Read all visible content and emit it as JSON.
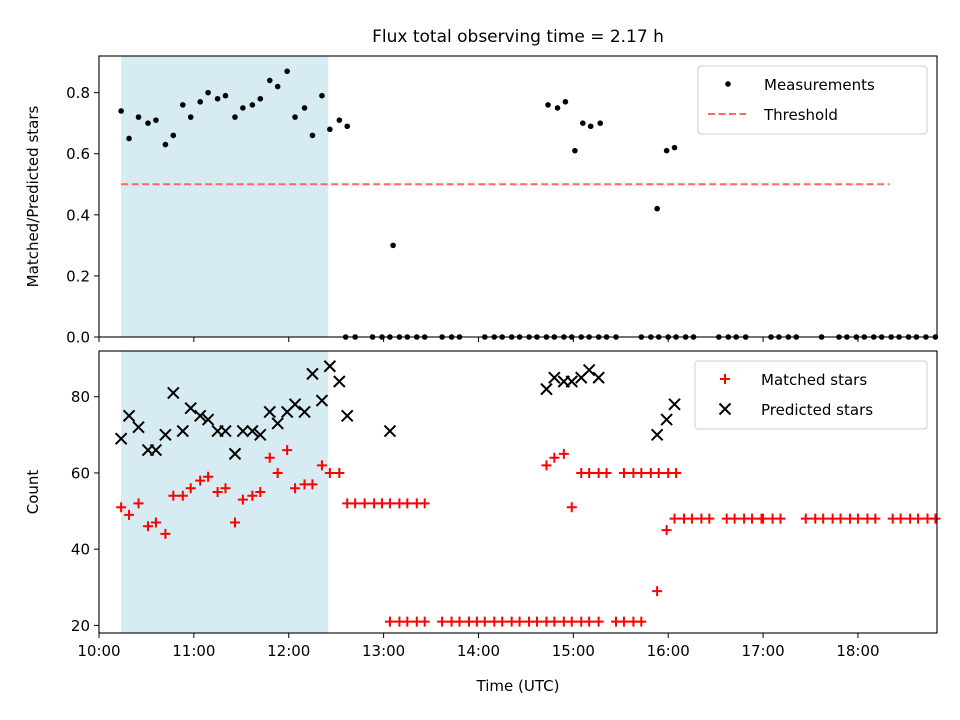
{
  "figure": {
    "title": "Flux total observing time = 2.17 h"
  },
  "chart_data": [
    {
      "type": "scatter",
      "xlabel": "",
      "ylabel": "Matched/Predicted stars",
      "xlim": [
        "10:00",
        "18:50"
      ],
      "ylim": [
        0,
        0.92
      ],
      "yticks": [
        "0.0",
        "0.2",
        "0.4",
        "0.6",
        "0.8"
      ],
      "ytick_values": [
        0,
        0.2,
        0.4,
        0.6,
        0.8
      ],
      "grid": false,
      "legend_position": "top-right",
      "shaded_interval": [
        "10:14",
        "12:25"
      ],
      "shade_color": "#add8e6",
      "series": [
        {
          "name": "Measurements",
          "marker": "dot",
          "color": "#000000",
          "points": [
            [
              "10:14",
              0.74
            ],
            [
              "10:19",
              0.65
            ],
            [
              "10:25",
              0.72
            ],
            [
              "10:31",
              0.7
            ],
            [
              "10:36",
              0.71
            ],
            [
              "10:42",
              0.63
            ],
            [
              "10:47",
              0.66
            ],
            [
              "10:53",
              0.76
            ],
            [
              "10:58",
              0.72
            ],
            [
              "11:04",
              0.77
            ],
            [
              "11:09",
              0.8
            ],
            [
              "11:15",
              0.78
            ],
            [
              "11:20",
              0.79
            ],
            [
              "11:26",
              0.72
            ],
            [
              "11:31",
              0.75
            ],
            [
              "11:37",
              0.76
            ],
            [
              "11:42",
              0.78
            ],
            [
              "11:48",
              0.84
            ],
            [
              "11:53",
              0.82
            ],
            [
              "11:59",
              0.87
            ],
            [
              "12:04",
              0.72
            ],
            [
              "12:10",
              0.75
            ],
            [
              "12:15",
              0.66
            ],
            [
              "12:21",
              0.79
            ],
            [
              "12:26",
              0.68
            ],
            [
              "12:32",
              0.71
            ],
            [
              "12:37",
              0.69
            ],
            [
              "12:36",
              0.0
            ],
            [
              "12:42",
              0.0
            ],
            [
              "12:53",
              0.0
            ],
            [
              "12:59",
              0.0
            ],
            [
              "13:04",
              0.0
            ],
            [
              "13:10",
              0.0
            ],
            [
              "13:15",
              0.0
            ],
            [
              "13:21",
              0.0
            ],
            [
              "13:26",
              0.0
            ],
            [
              "13:37",
              0.0
            ],
            [
              "13:43",
              0.0
            ],
            [
              "13:48",
              0.0
            ],
            [
              "14:04",
              0.0
            ],
            [
              "14:10",
              0.0
            ],
            [
              "14:15",
              0.0
            ],
            [
              "14:21",
              0.0
            ],
            [
              "14:26",
              0.0
            ],
            [
              "14:32",
              0.0
            ],
            [
              "14:37",
              0.0
            ],
            [
              "14:43",
              0.0
            ],
            [
              "14:48",
              0.0
            ],
            [
              "14:54",
              0.0
            ],
            [
              "14:59",
              0.0
            ],
            [
              "15:05",
              0.0
            ],
            [
              "15:10",
              0.0
            ],
            [
              "15:16",
              0.0
            ],
            [
              "15:21",
              0.0
            ],
            [
              "15:27",
              0.0
            ],
            [
              "15:43",
              0.0
            ],
            [
              "15:49",
              0.0
            ],
            [
              "15:54",
              0.0
            ],
            [
              "16:00",
              0.0
            ],
            [
              "16:05",
              0.0
            ],
            [
              "16:11",
              0.0
            ],
            [
              "16:16",
              0.0
            ],
            [
              "16:32",
              0.0
            ],
            [
              "16:38",
              0.0
            ],
            [
              "16:43",
              0.0
            ],
            [
              "16:49",
              0.0
            ],
            [
              "17:05",
              0.0
            ],
            [
              "17:10",
              0.0
            ],
            [
              "17:16",
              0.0
            ],
            [
              "17:21",
              0.0
            ],
            [
              "17:37",
              0.0
            ],
            [
              "17:48",
              0.0
            ],
            [
              "17:53",
              0.0
            ],
            [
              "17:59",
              0.0
            ],
            [
              "18:04",
              0.0
            ],
            [
              "18:10",
              0.0
            ],
            [
              "18:15",
              0.0
            ],
            [
              "18:21",
              0.0
            ],
            [
              "18:26",
              0.0
            ],
            [
              "18:32",
              0.0
            ],
            [
              "18:37",
              0.0
            ],
            [
              "18:43",
              0.0
            ],
            [
              "18:49",
              0.0
            ],
            [
              "13:06",
              0.3
            ],
            [
              "14:44",
              0.76
            ],
            [
              "14:50",
              0.75
            ],
            [
              "14:55",
              0.77
            ],
            [
              "15:01",
              0.61
            ],
            [
              "15:06",
              0.7
            ],
            [
              "15:11",
              0.69
            ],
            [
              "15:17",
              0.7
            ],
            [
              "15:53",
              0.42
            ],
            [
              "15:59",
              0.61
            ],
            [
              "16:04",
              0.62
            ]
          ]
        },
        {
          "name": "Threshold",
          "type": "line",
          "style": "dashed",
          "color": "#ff6666",
          "points": [
            [
              "10:14",
              0.5
            ],
            [
              "18:20",
              0.5
            ]
          ]
        }
      ]
    },
    {
      "type": "scatter",
      "xlabel": "Time (UTC)",
      "ylabel": "Count",
      "xlim": [
        "10:00",
        "18:50"
      ],
      "ylim": [
        18,
        92
      ],
      "yticks": [
        "20",
        "40",
        "60",
        "80"
      ],
      "ytick_values": [
        20,
        40,
        60,
        80
      ],
      "xticks": [
        "10:00",
        "11:00",
        "12:00",
        "13:00",
        "14:00",
        "15:00",
        "16:00",
        "17:00",
        "18:00"
      ],
      "grid": false,
      "legend_position": "top-right",
      "shaded_interval": [
        "10:14",
        "12:25"
      ],
      "shade_color": "#add8e6",
      "series": [
        {
          "name": "Matched stars",
          "marker": "plus",
          "color": "#ff0000",
          "points": [
            [
              "10:14",
              51
            ],
            [
              "10:19",
              49
            ],
            [
              "10:25",
              52
            ],
            [
              "10:31",
              46
            ],
            [
              "10:36",
              47
            ],
            [
              "10:42",
              44
            ],
            [
              "10:47",
              54
            ],
            [
              "10:53",
              54
            ],
            [
              "10:58",
              56
            ],
            [
              "11:04",
              58
            ],
            [
              "11:09",
              59
            ],
            [
              "11:15",
              55
            ],
            [
              "11:20",
              56
            ],
            [
              "11:26",
              47
            ],
            [
              "11:31",
              53
            ],
            [
              "11:37",
              54
            ],
            [
              "11:42",
              55
            ],
            [
              "11:48",
              64
            ],
            [
              "11:53",
              60
            ],
            [
              "11:59",
              66
            ],
            [
              "12:04",
              56
            ],
            [
              "12:10",
              57
            ],
            [
              "12:15",
              57
            ],
            [
              "12:21",
              62
            ],
            [
              "12:26",
              60
            ],
            [
              "12:32",
              60
            ],
            [
              "12:37",
              52
            ],
            [
              "12:42",
              52
            ],
            [
              "12:48",
              52
            ],
            [
              "12:54",
              52
            ],
            [
              "12:59",
              52
            ],
            [
              "13:04",
              52
            ],
            [
              "13:10",
              52
            ],
            [
              "13:15",
              52
            ],
            [
              "13:21",
              52
            ],
            [
              "13:26",
              52
            ],
            [
              "13:04",
              21
            ],
            [
              "13:10",
              21
            ],
            [
              "13:15",
              21
            ],
            [
              "13:21",
              21
            ],
            [
              "13:26",
              21
            ],
            [
              "13:37",
              21
            ],
            [
              "13:43",
              21
            ],
            [
              "13:48",
              21
            ],
            [
              "13:54",
              21
            ],
            [
              "13:59",
              21
            ],
            [
              "14:04",
              21
            ],
            [
              "14:10",
              21
            ],
            [
              "14:15",
              21
            ],
            [
              "14:21",
              21
            ],
            [
              "14:26",
              21
            ],
            [
              "14:32",
              21
            ],
            [
              "14:37",
              21
            ],
            [
              "14:43",
              21
            ],
            [
              "14:48",
              21
            ],
            [
              "14:54",
              21
            ],
            [
              "14:59",
              21
            ],
            [
              "15:05",
              21
            ],
            [
              "15:10",
              21
            ],
            [
              "15:16",
              21
            ],
            [
              "15:27",
              21
            ],
            [
              "15:32",
              21
            ],
            [
              "15:38",
              21
            ],
            [
              "15:43",
              21
            ],
            [
              "14:43",
              62
            ],
            [
              "14:48",
              64
            ],
            [
              "14:54",
              65
            ],
            [
              "14:59",
              51
            ],
            [
              "15:05",
              60
            ],
            [
              "15:10",
              60
            ],
            [
              "15:16",
              60
            ],
            [
              "15:21",
              60
            ],
            [
              "15:32",
              60
            ],
            [
              "15:38",
              60
            ],
            [
              "15:43",
              60
            ],
            [
              "15:49",
              60
            ],
            [
              "15:54",
              60
            ],
            [
              "16:00",
              60
            ],
            [
              "16:05",
              60
            ],
            [
              "15:53",
              29
            ],
            [
              "15:59",
              45
            ],
            [
              "16:04",
              48
            ],
            [
              "16:10",
              48
            ],
            [
              "16:15",
              48
            ],
            [
              "16:21",
              48
            ],
            [
              "16:26",
              48
            ],
            [
              "16:37",
              48
            ],
            [
              "16:42",
              48
            ],
            [
              "16:48",
              48
            ],
            [
              "16:53",
              48
            ],
            [
              "16:59",
              48
            ],
            [
              "17:00",
              48
            ],
            [
              "17:06",
              48
            ],
            [
              "17:11",
              48
            ],
            [
              "17:27",
              48
            ],
            [
              "17:33",
              48
            ],
            [
              "17:38",
              48
            ],
            [
              "17:44",
              48
            ],
            [
              "17:49",
              48
            ],
            [
              "17:55",
              48
            ],
            [
              "18:00",
              48
            ],
            [
              "18:06",
              48
            ],
            [
              "18:11",
              48
            ],
            [
              "18:22",
              48
            ],
            [
              "18:27",
              48
            ],
            [
              "18:33",
              48
            ],
            [
              "18:38",
              48
            ],
            [
              "18:44",
              48
            ],
            [
              "18:49",
              48
            ]
          ]
        },
        {
          "name": "Predicted stars",
          "marker": "x",
          "color": "#000000",
          "points": [
            [
              "10:14",
              69
            ],
            [
              "10:19",
              75
            ],
            [
              "10:25",
              72
            ],
            [
              "10:31",
              66
            ],
            [
              "10:36",
              66
            ],
            [
              "10:42",
              70
            ],
            [
              "10:47",
              81
            ],
            [
              "10:53",
              71
            ],
            [
              "10:58",
              77
            ],
            [
              "11:04",
              75
            ],
            [
              "11:09",
              74
            ],
            [
              "11:15",
              71
            ],
            [
              "11:20",
              71
            ],
            [
              "11:26",
              65
            ],
            [
              "11:31",
              71
            ],
            [
              "11:37",
              71
            ],
            [
              "11:42",
              70
            ],
            [
              "11:48",
              76
            ],
            [
              "11:53",
              73
            ],
            [
              "11:59",
              76
            ],
            [
              "12:04",
              78
            ],
            [
              "12:10",
              76
            ],
            [
              "12:15",
              86
            ],
            [
              "12:21",
              79
            ],
            [
              "12:26",
              88
            ],
            [
              "12:32",
              84
            ],
            [
              "12:37",
              75
            ],
            [
              "13:04",
              71
            ],
            [
              "14:43",
              82
            ],
            [
              "14:48",
              85
            ],
            [
              "14:54",
              84
            ],
            [
              "14:59",
              84
            ],
            [
              "15:05",
              85
            ],
            [
              "15:10",
              87
            ],
            [
              "15:16",
              85
            ],
            [
              "15:53",
              70
            ],
            [
              "15:59",
              74
            ],
            [
              "16:04",
              78
            ]
          ]
        }
      ]
    }
  ]
}
